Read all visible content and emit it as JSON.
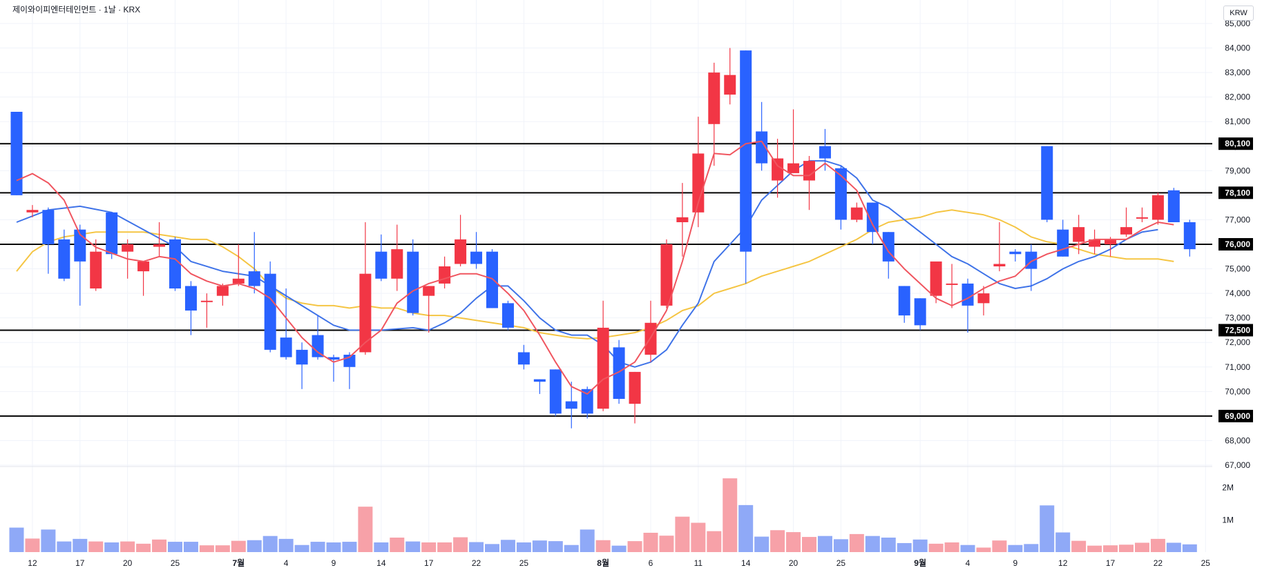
{
  "header": {
    "title": "제이와이피엔터테인먼트 · 1날 · KRX",
    "currency": "KRW"
  },
  "colors": {
    "up": "#f23645",
    "down": "#2962ff",
    "ma5": "#f0555f",
    "ma10": "#3f73e8",
    "ma20": "#f5c543",
    "vol_up": "#f7a1a8",
    "vol_down": "#8fa9f7",
    "level": "#000000",
    "grid": "#f0f3fa"
  },
  "chart_data": {
    "type": "candlestick",
    "price_axis": {
      "min": 67000,
      "max": 85000,
      "ticks": [
        "67,000",
        "68,000",
        "69,000",
        "70,000",
        "71,000",
        "72,000",
        "73,000",
        "74,000",
        "75,000",
        "76,000",
        "77,000",
        "78,000",
        "79,000",
        "80,000",
        "81,000",
        "82,000",
        "83,000",
        "84,000",
        "85,000"
      ]
    },
    "volume_axis": {
      "ticks": [
        {
          "label": "1M",
          "value": 1000000
        },
        {
          "label": "2M",
          "value": 2000000
        }
      ]
    },
    "levels": [
      {
        "value": 80100,
        "label": "80,100"
      },
      {
        "value": 78100,
        "label": "78,100"
      },
      {
        "value": 76000,
        "label": "76,000"
      },
      {
        "value": 72500,
        "label": "72,500"
      },
      {
        "value": 69000,
        "label": "69,000"
      }
    ],
    "x_labels": [
      {
        "i": 1,
        "label": "12",
        "bold": false
      },
      {
        "i": 4,
        "label": "17",
        "bold": false
      },
      {
        "i": 7,
        "label": "20",
        "bold": false
      },
      {
        "i": 10,
        "label": "25",
        "bold": false
      },
      {
        "i": 14,
        "label": "7월",
        "bold": true
      },
      {
        "i": 17,
        "label": "4",
        "bold": false
      },
      {
        "i": 20,
        "label": "9",
        "bold": false
      },
      {
        "i": 23,
        "label": "14",
        "bold": false
      },
      {
        "i": 26,
        "label": "17",
        "bold": false
      },
      {
        "i": 29,
        "label": "22",
        "bold": false
      },
      {
        "i": 32,
        "label": "25",
        "bold": false
      },
      {
        "i": 37,
        "label": "8월",
        "bold": true
      },
      {
        "i": 40,
        "label": "6",
        "bold": false
      },
      {
        "i": 43,
        "label": "11",
        "bold": false
      },
      {
        "i": 46,
        "label": "14",
        "bold": false
      },
      {
        "i": 49,
        "label": "20",
        "bold": false
      },
      {
        "i": 52,
        "label": "25",
        "bold": false
      },
      {
        "i": 57,
        "label": "9월",
        "bold": true
      },
      {
        "i": 60,
        "label": "4",
        "bold": false
      },
      {
        "i": 63,
        "label": "9",
        "bold": false
      },
      {
        "i": 66,
        "label": "12",
        "bold": false
      },
      {
        "i": 69,
        "label": "17",
        "bold": false
      },
      {
        "i": 72,
        "label": "22",
        "bold": false
      },
      {
        "i": 75,
        "label": "25",
        "bold": false
      }
    ],
    "candles": [
      [
        81400,
        81400,
        78000,
        78000
      ],
      [
        77300,
        77600,
        77100,
        77400
      ],
      [
        77400,
        77500,
        74800,
        76000
      ],
      [
        76200,
        76600,
        74500,
        74600
      ],
      [
        76600,
        76800,
        73500,
        75300
      ],
      [
        74200,
        76200,
        74100,
        75700
      ],
      [
        77300,
        77300,
        75400,
        75600
      ],
      [
        75700,
        76200,
        74600,
        76000
      ],
      [
        74900,
        75300,
        73900,
        75300
      ],
      [
        75900,
        76900,
        75500,
        76000
      ],
      [
        76200,
        76300,
        74100,
        74200
      ],
      [
        74300,
        74500,
        72300,
        73300
      ],
      [
        73700,
        74000,
        72600,
        73700
      ],
      [
        73900,
        74400,
        73500,
        74300
      ],
      [
        74400,
        76000,
        74300,
        74600
      ],
      [
        74900,
        76500,
        74000,
        74300
      ],
      [
        74800,
        75300,
        71600,
        71700
      ],
      [
        72200,
        74200,
        71300,
        71400
      ],
      [
        71700,
        72000,
        70100,
        71100
      ],
      [
        72300,
        73100,
        71300,
        71400
      ],
      [
        71400,
        71500,
        70400,
        71300
      ],
      [
        71500,
        71600,
        70100,
        71000
      ],
      [
        71600,
        76900,
        71500,
        74800
      ],
      [
        75700,
        76400,
        74500,
        74600
      ],
      [
        74600,
        76800,
        74100,
        75800
      ],
      [
        75700,
        76200,
        73100,
        73200
      ],
      [
        73900,
        74300,
        72400,
        74300
      ],
      [
        74400,
        75500,
        74200,
        75100
      ],
      [
        75200,
        77200,
        75100,
        76200
      ],
      [
        75700,
        76500,
        75000,
        75200
      ],
      [
        75700,
        75800,
        73400,
        73400
      ],
      [
        73600,
        73700,
        72500,
        72600
      ],
      [
        71600,
        71900,
        70900,
        71100
      ],
      [
        70500,
        70500,
        69900,
        70400
      ],
      [
        70900,
        70900,
        69000,
        69100
      ],
      [
        69600,
        70400,
        68500,
        69300
      ],
      [
        70100,
        70200,
        68900,
        69100
      ],
      [
        69300,
        73700,
        69200,
        72600
      ],
      [
        71800,
        72100,
        69500,
        69700
      ],
      [
        69500,
        70800,
        68700,
        70800
      ],
      [
        71500,
        73700,
        71200,
        72800
      ],
      [
        73500,
        76200,
        73400,
        76000
      ],
      [
        76900,
        78500,
        75500,
        77100
      ],
      [
        77300,
        81200,
        76700,
        79700
      ],
      [
        80900,
        83400,
        79200,
        83000
      ],
      [
        82100,
        84000,
        81700,
        82900
      ],
      [
        83900,
        83900,
        74400,
        75700
      ],
      [
        80600,
        81800,
        79000,
        79300
      ],
      [
        78600,
        80300,
        77900,
        79500
      ],
      [
        78900,
        81500,
        79000,
        79300
      ],
      [
        78600,
        79600,
        77400,
        79400
      ],
      [
        80000,
        80700,
        79000,
        79500
      ],
      [
        79100,
        79200,
        76600,
        77000
      ],
      [
        77000,
        77700,
        76900,
        77500
      ],
      [
        77700,
        77700,
        76000,
        76500
      ],
      [
        76500,
        76500,
        74600,
        75300
      ],
      [
        74300,
        74300,
        72800,
        73100
      ],
      [
        73800,
        73800,
        72500,
        72700
      ],
      [
        73900,
        75200,
        73600,
        75300
      ],
      [
        74400,
        75200,
        73400,
        74400
      ],
      [
        74400,
        74600,
        72400,
        73500
      ],
      [
        73600,
        74300,
        73100,
        74000
      ],
      [
        75100,
        76900,
        74900,
        75200
      ],
      [
        75700,
        75800,
        75300,
        75600
      ],
      [
        75700,
        76000,
        74100,
        75000
      ],
      [
        80000,
        80000,
        76900,
        77000
      ],
      [
        76600,
        77000,
        75500,
        75500
      ],
      [
        76100,
        77200,
        75600,
        76700
      ],
      [
        75900,
        76600,
        75600,
        76200
      ],
      [
        76000,
        76300,
        75500,
        76200
      ],
      [
        76400,
        77500,
        76300,
        76700
      ],
      [
        77100,
        77500,
        76900,
        77100
      ],
      [
        77000,
        78100,
        76800,
        78000
      ],
      [
        78200,
        78300,
        76900,
        76900
      ],
      [
        76900,
        77000,
        75500,
        75800
      ]
    ],
    "volumes": [
      760000,
      420000,
      700000,
      330000,
      410000,
      330000,
      300000,
      330000,
      260000,
      390000,
      320000,
      320000,
      210000,
      210000,
      350000,
      370000,
      500000,
      410000,
      220000,
      320000,
      300000,
      320000,
      1410000,
      300000,
      450000,
      330000,
      300000,
      300000,
      460000,
      310000,
      250000,
      380000,
      300000,
      360000,
      340000,
      220000,
      700000,
      370000,
      200000,
      340000,
      600000,
      510000,
      1100000,
      910000,
      650000,
      2290000,
      1460000,
      480000,
      680000,
      620000,
      470000,
      500000,
      400000,
      560000,
      500000,
      450000,
      280000,
      390000,
      260000,
      300000,
      220000,
      140000,
      360000,
      220000,
      250000,
      1450000,
      610000,
      350000,
      200000,
      210000,
      230000,
      290000,
      410000,
      290000,
      240000
    ],
    "ma5": [
      [
        0,
        78600
      ],
      [
        1,
        78880
      ],
      [
        2,
        78500
      ],
      [
        3,
        77800
      ],
      [
        4,
        76400
      ],
      [
        5,
        75880
      ],
      [
        7,
        75400
      ],
      [
        8,
        75300
      ],
      [
        9,
        75500
      ],
      [
        10,
        75400
      ],
      [
        11,
        74800
      ],
      [
        12,
        74500
      ],
      [
        13,
        74300
      ],
      [
        14,
        74400
      ],
      [
        15,
        74200
      ],
      [
        16,
        73800
      ],
      [
        17,
        73000
      ],
      [
        18,
        72200
      ],
      [
        19,
        71600
      ],
      [
        20,
        71200
      ],
      [
        21,
        71400
      ],
      [
        22,
        72000
      ],
      [
        23,
        72500
      ],
      [
        24,
        73600
      ],
      [
        25,
        74100
      ],
      [
        26,
        74400
      ],
      [
        27,
        74600
      ],
      [
        28,
        74800
      ],
      [
        29,
        74800
      ],
      [
        30,
        74600
      ],
      [
        31,
        74000
      ],
      [
        32,
        73300
      ],
      [
        33,
        72300
      ],
      [
        34,
        71200
      ],
      [
        35,
        70200
      ],
      [
        36,
        69900
      ],
      [
        37,
        70500
      ],
      [
        38,
        70800
      ],
      [
        39,
        71200
      ],
      [
        40,
        72200
      ],
      [
        41,
        73300
      ],
      [
        42,
        75300
      ],
      [
        43,
        77700
      ],
      [
        44,
        79700
      ],
      [
        45,
        79650
      ],
      [
        46,
        80100
      ],
      [
        47,
        80200
      ],
      [
        48,
        79200
      ],
      [
        49,
        78800
      ],
      [
        50,
        78800
      ],
      [
        51,
        79300
      ],
      [
        52,
        78800
      ],
      [
        53,
        78200
      ],
      [
        54,
        76800
      ],
      [
        55,
        75700
      ],
      [
        56,
        75000
      ],
      [
        57,
        74400
      ],
      [
        58,
        73800
      ],
      [
        59,
        73500
      ],
      [
        60,
        73800
      ],
      [
        61,
        74200
      ],
      [
        62,
        74500
      ],
      [
        63,
        74700
      ],
      [
        64,
        75300
      ],
      [
        65,
        75600
      ],
      [
        66,
        75800
      ],
      [
        67,
        76000
      ],
      [
        68,
        76200
      ],
      [
        69,
        76200
      ],
      [
        70,
        76200
      ],
      [
        71,
        76600
      ],
      [
        72,
        76900
      ],
      [
        73,
        76800
      ]
    ],
    "ma10": [
      [
        0,
        76900
      ],
      [
        2,
        77400
      ],
      [
        4,
        77550
      ],
      [
        6,
        77300
      ],
      [
        8,
        76600
      ],
      [
        10,
        75900
      ],
      [
        11,
        75300
      ],
      [
        13,
        74900
      ],
      [
        15,
        74700
      ],
      [
        16,
        74300
      ],
      [
        18,
        73500
      ],
      [
        20,
        72700
      ],
      [
        21,
        72500
      ],
      [
        23,
        72500
      ],
      [
        25,
        72600
      ],
      [
        26,
        72500
      ],
      [
        27,
        72800
      ],
      [
        28,
        73200
      ],
      [
        29,
        73800
      ],
      [
        30,
        74300
      ],
      [
        31,
        74300
      ],
      [
        32,
        73700
      ],
      [
        33,
        73000
      ],
      [
        34,
        72500
      ],
      [
        35,
        72300
      ],
      [
        36,
        72300
      ],
      [
        37,
        71900
      ],
      [
        38,
        71200
      ],
      [
        39,
        71000
      ],
      [
        40,
        71200
      ],
      [
        41,
        71700
      ],
      [
        42,
        72700
      ],
      [
        43,
        73600
      ],
      [
        44,
        75300
      ],
      [
        45,
        76000
      ],
      [
        46,
        76700
      ],
      [
        47,
        77800
      ],
      [
        48,
        78400
      ],
      [
        49,
        79000
      ],
      [
        50,
        79400
      ],
      [
        51,
        79400
      ],
      [
        52,
        79200
      ],
      [
        53,
        78700
      ],
      [
        54,
        77800
      ],
      [
        55,
        77500
      ],
      [
        56,
        77000
      ],
      [
        57,
        76500
      ],
      [
        58,
        76000
      ],
      [
        59,
        75500
      ],
      [
        60,
        75200
      ],
      [
        61,
        74800
      ],
      [
        62,
        74400
      ],
      [
        63,
        74200
      ],
      [
        64,
        74300
      ],
      [
        65,
        74600
      ],
      [
        66,
        75000
      ],
      [
        67,
        75300
      ],
      [
        68,
        75500
      ],
      [
        69,
        75800
      ],
      [
        70,
        76200
      ],
      [
        71,
        76500
      ],
      [
        72,
        76600
      ]
    ],
    "ma20": [
      [
        0,
        74900
      ],
      [
        1,
        75700
      ],
      [
        2,
        76100
      ],
      [
        3,
        76300
      ],
      [
        4,
        76400
      ],
      [
        5,
        76500
      ],
      [
        6,
        76500
      ],
      [
        7,
        76500
      ],
      [
        8,
        76500
      ],
      [
        9,
        76400
      ],
      [
        10,
        76300
      ],
      [
        11,
        76200
      ],
      [
        12,
        76200
      ],
      [
        13,
        75900
      ],
      [
        14,
        75500
      ],
      [
        15,
        75000
      ],
      [
        16,
        74300
      ],
      [
        17,
        73800
      ],
      [
        18,
        73600
      ],
      [
        19,
        73500
      ],
      [
        20,
        73500
      ],
      [
        21,
        73400
      ],
      [
        22,
        73500
      ],
      [
        23,
        73400
      ],
      [
        24,
        73400
      ],
      [
        25,
        73200
      ],
      [
        26,
        73100
      ],
      [
        27,
        73100
      ],
      [
        28,
        73000
      ],
      [
        29,
        72900
      ],
      [
        30,
        72800
      ],
      [
        31,
        72700
      ],
      [
        32,
        72600
      ],
      [
        33,
        72400
      ],
      [
        34,
        72300
      ],
      [
        35,
        72200
      ],
      [
        36,
        72150
      ],
      [
        37,
        72200
      ],
      [
        38,
        72300
      ],
      [
        39,
        72400
      ],
      [
        40,
        72600
      ],
      [
        41,
        72900
      ],
      [
        42,
        73300
      ],
      [
        43,
        73500
      ],
      [
        44,
        74000
      ],
      [
        45,
        74200
      ],
      [
        46,
        74400
      ],
      [
        47,
        74700
      ],
      [
        48,
        74900
      ],
      [
        49,
        75100
      ],
      [
        50,
        75300
      ],
      [
        51,
        75600
      ],
      [
        52,
        75900
      ],
      [
        53,
        76200
      ],
      [
        54,
        76600
      ],
      [
        55,
        76900
      ],
      [
        56,
        77000
      ],
      [
        57,
        77100
      ],
      [
        58,
        77300
      ],
      [
        59,
        77400
      ],
      [
        60,
        77300
      ],
      [
        61,
        77200
      ],
      [
        62,
        77000
      ],
      [
        63,
        76700
      ],
      [
        64,
        76300
      ],
      [
        65,
        76100
      ],
      [
        66,
        76000
      ],
      [
        67,
        75800
      ],
      [
        68,
        75600
      ],
      [
        69,
        75500
      ],
      [
        70,
        75400
      ],
      [
        71,
        75400
      ],
      [
        72,
        75400
      ],
      [
        73,
        75300
      ]
    ]
  }
}
